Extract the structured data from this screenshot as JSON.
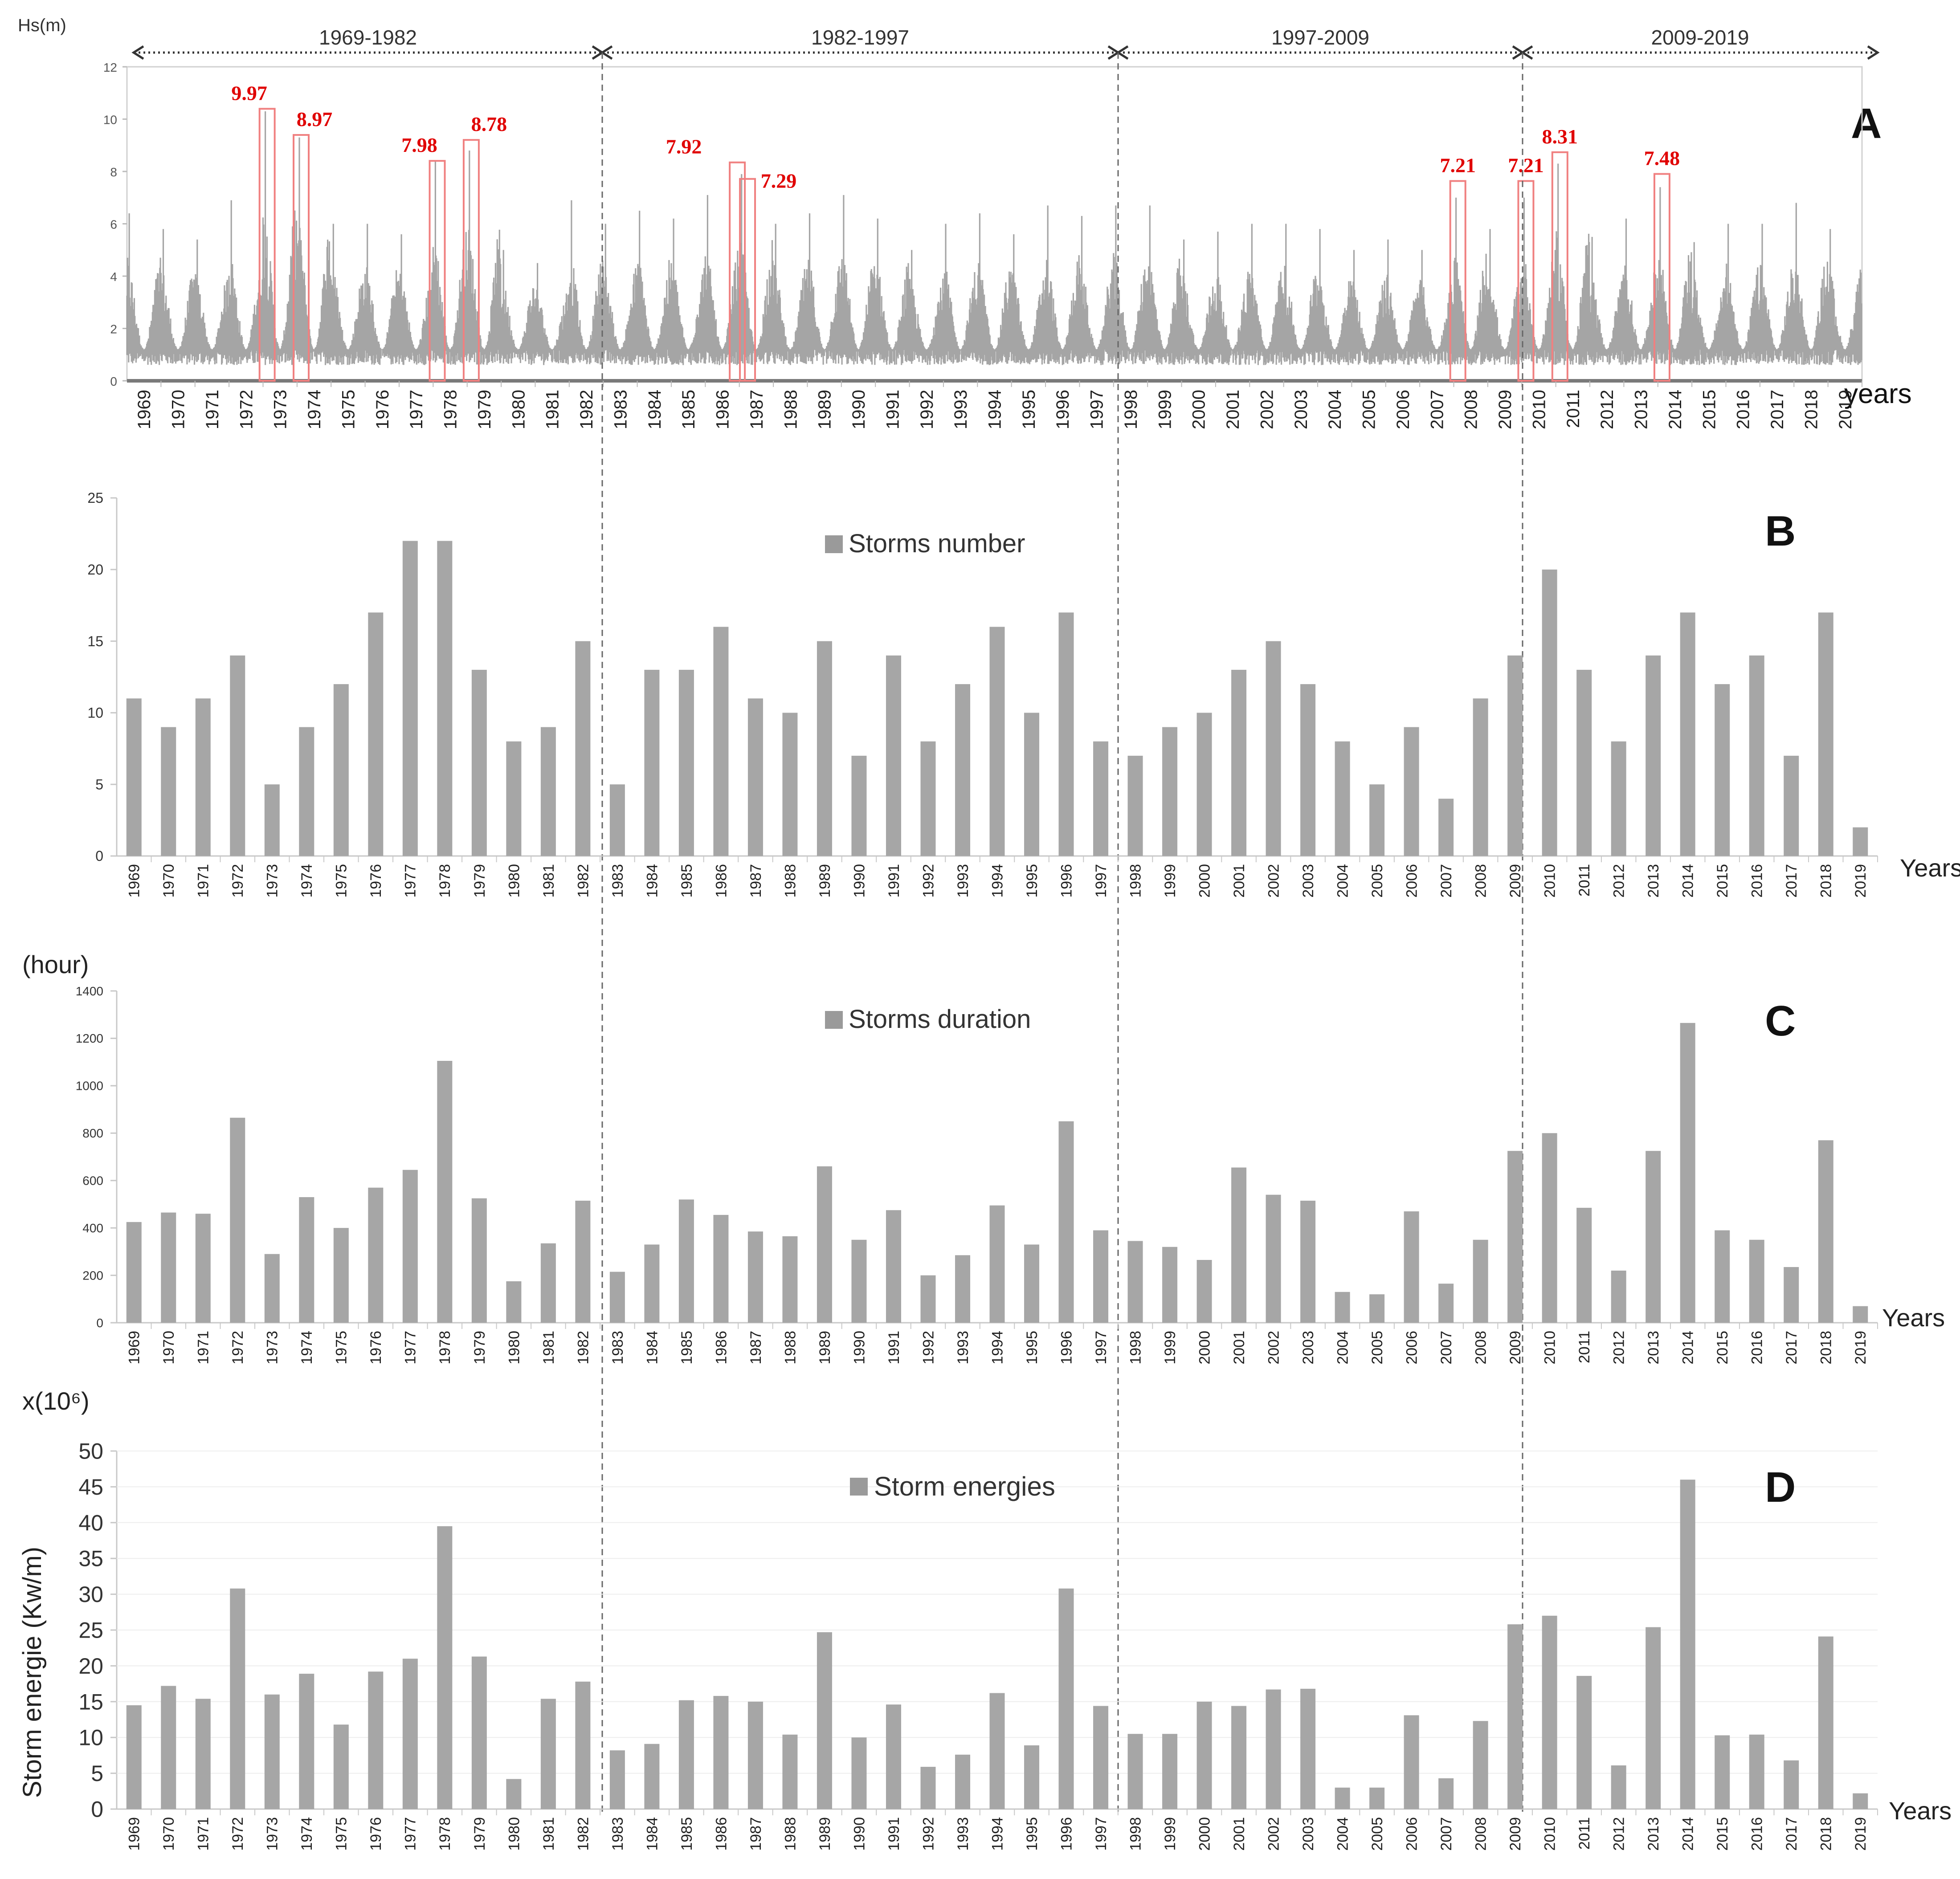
{
  "chart_data": {
    "years": [
      "1969",
      "1970",
      "1971",
      "1972",
      "1973",
      "1974",
      "1975",
      "1976",
      "1977",
      "1978",
      "1979",
      "1980",
      "1981",
      "1982",
      "1983",
      "1984",
      "1985",
      "1986",
      "1987",
      "1988",
      "1989",
      "1990",
      "1991",
      "1992",
      "1993",
      "1994",
      "1995",
      "1996",
      "1997",
      "1998",
      "1999",
      "2000",
      "2001",
      "2002",
      "2003",
      "2004",
      "2005",
      "2006",
      "2007",
      "2008",
      "2009",
      "2010",
      "2011",
      "2012",
      "2013",
      "2014",
      "2015",
      "2016",
      "2017",
      "2018",
      "2019"
    ],
    "periods": [
      "1969-1982",
      "1982-1997",
      "1997-2009",
      "2009-2019"
    ],
    "panels": [
      {
        "id": "A",
        "type": "scatter",
        "ylabel": "Hs(m)",
        "xlabel": "years",
        "ylim": [
          0,
          12
        ],
        "yticks": [
          "0",
          "2",
          "4",
          "6",
          "8",
          "10",
          "12"
        ],
        "peaks": [
          {
            "year": "1973",
            "label": "9.97",
            "value": 9.97
          },
          {
            "year": "1974",
            "label": "8.97",
            "value": 8.97
          },
          {
            "year": "1978",
            "label": "7.98",
            "value": 7.98
          },
          {
            "year": "1979",
            "label": "8.78",
            "value": 8.78
          },
          {
            "year": "1987",
            "label": "7.92",
            "value": 7.92
          },
          {
            "year": "1987",
            "label": "7.29",
            "value": 7.29
          },
          {
            "year": "2008",
            "label": "7.21",
            "value": 7.21
          },
          {
            "year": "2010",
            "label": "7.21",
            "value": 7.21
          },
          {
            "year": "2011",
            "label": "8.31",
            "value": 8.31
          },
          {
            "year": "2014",
            "label": "7.48",
            "value": 7.48
          }
        ],
        "annual_max_approx": [
          6.4,
          5.8,
          5.4,
          6.9,
          10.3,
          9.3,
          6.0,
          6.0,
          5.6,
          8.4,
          8.8,
          5.0,
          4.5,
          6.9,
          6.0,
          6.5,
          6.2,
          7.1,
          7.9,
          6.0,
          6.4,
          7.1,
          6.2,
          5.0,
          6.0,
          6.4,
          5.6,
          6.7,
          6.3,
          6.7,
          6.7,
          5.4,
          5.7,
          6.0,
          6.0,
          5.8,
          5.0,
          5.4,
          5.0,
          7.0,
          5.8,
          7.0,
          8.3,
          5.5,
          6.2,
          7.4,
          5.3,
          6.0,
          6.0,
          6.8,
          5.8
        ]
      },
      {
        "id": "B",
        "type": "bar",
        "legend": "Storms number",
        "xlabel": "Years",
        "ylim": [
          0,
          25
        ],
        "yticks": [
          "0",
          "5",
          "10",
          "15",
          "20",
          "25"
        ],
        "values": [
          11,
          9,
          11,
          14,
          5,
          9,
          12,
          17,
          22,
          22,
          13,
          8,
          9,
          15,
          5,
          13,
          13,
          16,
          11,
          10,
          15,
          7,
          14,
          8,
          12,
          16,
          10,
          17,
          8,
          7,
          9,
          10,
          13,
          15,
          12,
          8,
          5,
          9,
          4,
          11,
          14,
          20,
          13,
          8,
          14,
          17,
          12,
          14,
          7,
          17,
          2
        ]
      },
      {
        "id": "C",
        "type": "bar",
        "legend": "Storms duration",
        "ylabel": "(hour)",
        "xlabel": "Years",
        "ylim": [
          0,
          1400
        ],
        "yticks": [
          "0",
          "200",
          "400",
          "600",
          "800",
          "1000",
          "1200",
          "1400"
        ],
        "values": [
          425,
          465,
          460,
          865,
          290,
          530,
          400,
          570,
          645,
          1105,
          525,
          175,
          335,
          515,
          215,
          330,
          520,
          455,
          385,
          365,
          660,
          350,
          475,
          200,
          285,
          495,
          330,
          850,
          390,
          345,
          320,
          265,
          655,
          540,
          515,
          130,
          120,
          470,
          165,
          350,
          725,
          800,
          485,
          220,
          725,
          1265,
          390,
          350,
          235,
          770,
          70
        ]
      },
      {
        "id": "D",
        "type": "bar",
        "legend": "Storm energies",
        "unit_label": "x(10⁶)",
        "ylabel": "Storm energie (Kw/m)",
        "xlabel": "Years",
        "ylim": [
          0,
          50
        ],
        "yticks": [
          "0",
          "5",
          "10",
          "15",
          "20",
          "25",
          "30",
          "35",
          "40",
          "45",
          "50"
        ],
        "values": [
          14.5,
          17.2,
          15.4,
          30.8,
          16.0,
          18.9,
          11.8,
          19.2,
          21.0,
          39.5,
          21.3,
          4.2,
          15.4,
          17.8,
          8.2,
          9.1,
          15.2,
          15.8,
          15.0,
          10.4,
          24.7,
          10.0,
          14.6,
          5.9,
          7.6,
          16.2,
          8.9,
          30.8,
          14.4,
          10.5,
          10.5,
          15.0,
          14.4,
          16.7,
          16.8,
          3.0,
          3.0,
          13.1,
          4.3,
          12.3,
          25.8,
          27.0,
          18.6,
          6.1,
          25.4,
          46.0,
          10.3,
          10.4,
          6.8,
          24.1,
          2.2
        ]
      }
    ]
  }
}
